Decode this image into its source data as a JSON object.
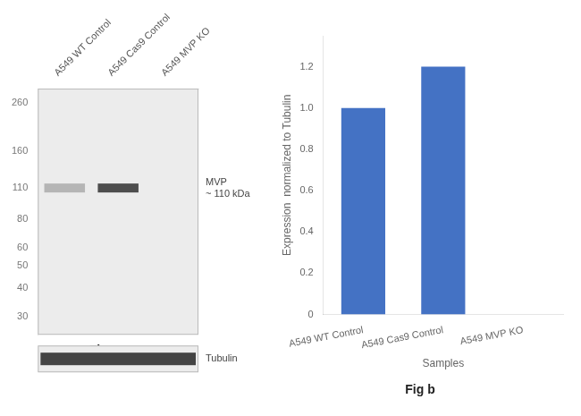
{
  "chart_data": [
    {
      "type": "blot",
      "title": "Fig a",
      "categories": [
        "A549 WT Control",
        "A549 Cas9 Control",
        "A549 MVP KO"
      ],
      "log": "y",
      "ylim": [
        25,
        300
      ],
      "yticks": [
        260,
        160,
        110,
        80,
        60,
        50,
        40,
        30
      ],
      "grid": false,
      "annotations": [
        {
          "text": "MVP\n~ 110 kDa",
          "y": 110
        },
        {
          "text": "Tubulin"
        }
      ]
    },
    {
      "type": "bar",
      "title": "Fig b",
      "categories": [
        "A549 WT Control",
        "A549 Cas9 Control",
        "A549 MVP KO"
      ],
      "values": [
        1.0,
        1.2,
        0.0
      ],
      "color": "#4472c4",
      "xlabel": "Samples",
      "ylabel": "Expression  normalized to Tubulin",
      "ylim": [
        0,
        1.35
      ],
      "yticks": [
        0,
        0.2,
        0.4,
        0.6,
        0.8,
        {
          "value": 1.0,
          "label": "1.0"
        },
        1.2
      ],
      "grid": false
    }
  ]
}
